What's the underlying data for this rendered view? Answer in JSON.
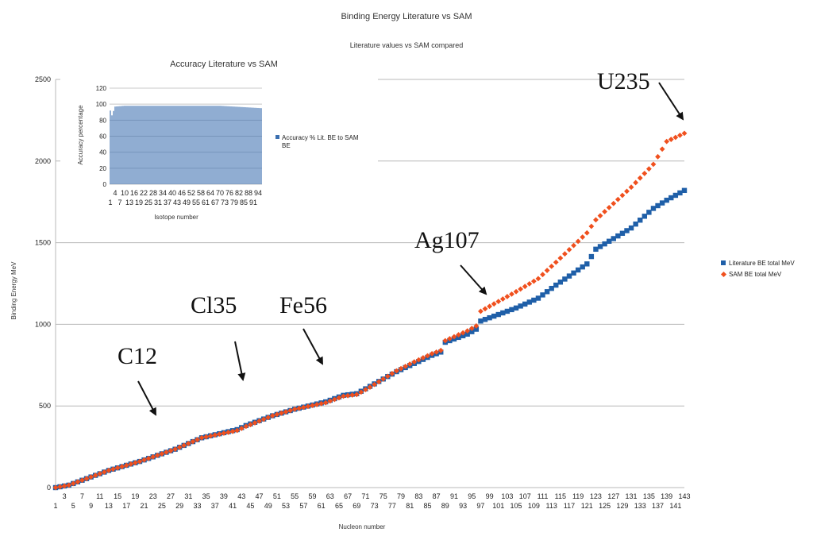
{
  "chart_data": [
    {
      "type": "scatter",
      "title": "Binding Energy Literature vs SAM",
      "subtitle": "Literature values vs SAM compared",
      "xlabel": "Nucleon number",
      "ylabel": "Binding Energy MeV",
      "ylim": [
        0,
        2500
      ],
      "yticks": [
        "0",
        "500",
        "1000",
        "1500",
        "2000",
        "2500"
      ],
      "xlim": [
        1,
        143
      ],
      "xtick_labels_odd": [
        "1",
        "5",
        "9",
        "13",
        "17",
        "21",
        "25",
        "29",
        "33",
        "37",
        "41",
        "45",
        "49",
        "53",
        "57",
        "61",
        "65",
        "69",
        "73",
        "77",
        "81",
        "85",
        "89",
        "93",
        "97",
        "101",
        "105",
        "109",
        "113",
        "117",
        "121",
        "125",
        "129",
        "133",
        "137",
        "141"
      ],
      "xtick_labels_even": [
        "3",
        "7",
        "11",
        "15",
        "19",
        "23",
        "27",
        "31",
        "35",
        "39",
        "43",
        "47",
        "51",
        "55",
        "59",
        "63",
        "67",
        "71",
        "75",
        "79",
        "83",
        "87",
        "91",
        "95",
        "99",
        "103",
        "107",
        "111",
        "115",
        "119",
        "123",
        "127",
        "131",
        "135",
        "139",
        "143"
      ],
      "grid": true,
      "legend_position": "right",
      "series": [
        {
          "name": "Literature BE total MeV",
          "color": "#1f5fa8",
          "marker": "square",
          "anchors_x": [
            1,
            4,
            10,
            13,
            20,
            28,
            34,
            42,
            44,
            50,
            55,
            62,
            66,
            69,
            72,
            78,
            82,
            86,
            88,
            89,
            94,
            96,
            97,
            105,
            110,
            114,
            121,
            123,
            131,
            136,
            139,
            143
          ],
          "anchors_y": [
            0,
            15,
            75,
            105,
            160,
            235,
            305,
            355,
            380,
            440,
            480,
            525,
            565,
            575,
            620,
            710,
            760,
            810,
            830,
            890,
            940,
            970,
            1020,
            1100,
            1160,
            1240,
            1370,
            1460,
            1590,
            1710,
            1760,
            1820
          ]
        },
        {
          "name": "SAM BE total MeV",
          "color": "#f0501e",
          "marker": "diamond",
          "anchors_x": [
            1,
            4,
            10,
            13,
            20,
            28,
            34,
            42,
            44,
            50,
            55,
            62,
            66,
            69,
            72,
            78,
            82,
            86,
            88,
            89,
            94,
            96,
            97,
            105,
            110,
            114,
            121,
            123,
            131,
            136,
            139,
            143
          ],
          "anchors_y": [
            0,
            15,
            75,
            105,
            160,
            235,
            305,
            350,
            375,
            440,
            480,
            520,
            560,
            570,
            615,
            715,
            770,
            820,
            840,
            900,
            960,
            990,
            1080,
            1200,
            1280,
            1380,
            1560,
            1640,
            1840,
            1980,
            2120,
            2170
          ]
        }
      ],
      "annotations": [
        "C12",
        "Cl35",
        "Fe56",
        "Ag107",
        "U235"
      ]
    },
    {
      "type": "bar",
      "title": "Accuracy Literature vs SAM",
      "xlabel": "Isotope number",
      "ylabel": "Accuracy percentage",
      "ylim": [
        0,
        120
      ],
      "yticks": [
        "0",
        "20",
        "40",
        "60",
        "80",
        "100",
        "120"
      ],
      "xtick_labels_top": [
        "4",
        "10",
        "16",
        "22",
        "28",
        "34",
        "40",
        "46",
        "52",
        "58",
        "64",
        "70",
        "76",
        "82",
        "88",
        "94"
      ],
      "xtick_labels_bottom": [
        "1",
        "7",
        "13",
        "19",
        "25",
        "31",
        "37",
        "43",
        "49",
        "55",
        "61",
        "67",
        "73",
        "79",
        "85",
        "91"
      ],
      "legend_position": "right",
      "series": [
        {
          "name": "Accuracy % Lit. BE to SAM BE",
          "color": "#3b6fb0",
          "bar_count": 96,
          "anchors_x": [
            1,
            2,
            4,
            10,
            40,
            70,
            96
          ],
          "anchors_y": [
            92,
            86,
            97,
            98,
            98,
            98,
            95
          ]
        }
      ]
    }
  ]
}
